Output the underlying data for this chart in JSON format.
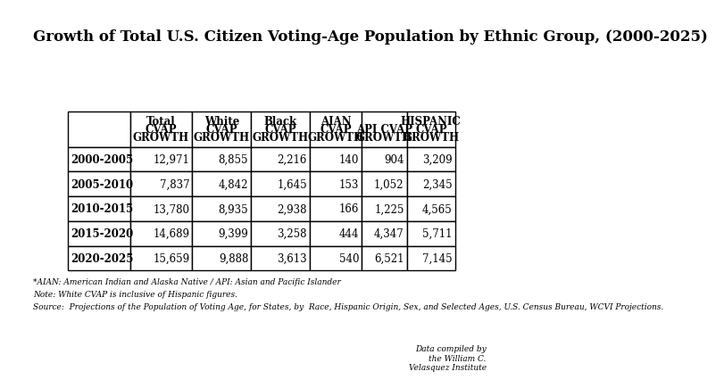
{
  "title": "Growth of Total U.S. Citizen Voting-Age Population by Ethnic Group, (2000-2025)",
  "col_headers_line1": [
    "",
    "Total",
    "White",
    "Black",
    "AIAN",
    "",
    "HISPANIC"
  ],
  "col_headers_line2": [
    "",
    "CVAP",
    "CVAP",
    "CVAP",
    "CVAP",
    "API CVAP",
    "CVAP"
  ],
  "col_headers_line3": [
    "",
    "GROWTH",
    "GROWTH",
    "GROWTH",
    "GROWTH",
    "GROWTH",
    "GROWTH"
  ],
  "rows": [
    [
      "2000-2005",
      "12,971",
      "8,855",
      "2,216",
      "140",
      "904",
      "3,209"
    ],
    [
      "2005-2010",
      "7,837",
      "4,842",
      "1,645",
      "153",
      "1,052",
      "2,345"
    ],
    [
      "2010-2015",
      "13,780",
      "8,935",
      "2,938",
      "166",
      "1,225",
      "4,565"
    ],
    [
      "2015-2020",
      "14,689",
      "9,399",
      "3,258",
      "444",
      "4,347",
      "5,711"
    ],
    [
      "2020-2025",
      "15,659",
      "9,888",
      "3,613",
      "540",
      "6,521",
      "7,145"
    ]
  ],
  "footnote1": "*AIAN: American Indian and Alaska Native / API: Asian and Pacific Islander",
  "footnote2": "Note: White CVAP is inclusive of Hispanic figures.",
  "footnote3": "Source:  Projections of the Population of Voting Age, for States, by  Race, Hispanic Origin, Sex, and Selected Ages, U.S. Census Bureau, WCVI Projections.",
  "footnote4": "Data compiled by\nthe William C.\nVelasquez Institute",
  "background_color": "#ffffff",
  "border_color": "#000000",
  "text_color": "#000000",
  "title_fontsize": 12,
  "header_fontsize": 8.5,
  "cell_fontsize": 8.5,
  "footnote_fontsize": 6.5
}
